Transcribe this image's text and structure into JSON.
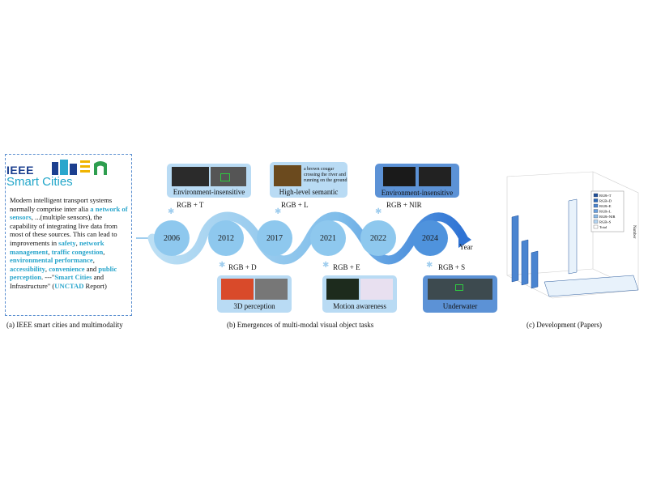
{
  "panel_a": {
    "logo_ieee": "IEEE",
    "logo_smart": "Smart Cities",
    "paragraph": [
      {
        "t": "Modern intelligent transport systems normally comprise inter alia "
      },
      {
        "t": "a network of sensors",
        "hl": true
      },
      {
        "t": ", ...(multiple sensors), the capability of integrating live data from most of these sources. This can lead to improvements in "
      },
      {
        "t": "safety",
        "hl": true
      },
      {
        "t": ", "
      },
      {
        "t": "network management",
        "hl": true
      },
      {
        "t": ", "
      },
      {
        "t": "traffic congestion",
        "hl": true
      },
      {
        "t": ", "
      },
      {
        "t": "environmental performance",
        "hl": true
      },
      {
        "t": ", "
      },
      {
        "t": "accessibility",
        "hl": true
      },
      {
        "t": ", "
      },
      {
        "t": "convenience",
        "hl": true
      },
      {
        "t": " and "
      },
      {
        "t": "public perception",
        "hl": true
      },
      {
        "t": ". ---\"",
        "br": true
      },
      {
        "t": "Smart Cities",
        "hl": true
      },
      {
        "t": " and Infrastructure\" ("
      },
      {
        "t": "UNCTAD",
        "hl": true
      },
      {
        "t": " Report)"
      }
    ],
    "caption": "(a) IEEE smart cities and multimodality"
  },
  "panel_b": {
    "years": [
      "2006",
      "2012",
      "2017",
      "2021",
      "2022",
      "2024"
    ],
    "axis_label": "Year",
    "top_events": [
      {
        "modality": "RGB + T",
        "task": "Environment-insensitive"
      },
      {
        "modality": "RGB + L",
        "task": "High-level semantic",
        "quote": [
          "a brown cougar",
          "crossing the river and",
          "running on the ground"
        ]
      },
      {
        "modality": "RGB + NIR",
        "task": "Environment-insensitive"
      }
    ],
    "bottom_events": [
      {
        "modality": "RGB + D",
        "task": "3D perception"
      },
      {
        "modality": "RGB + E",
        "task": "Motion awareness"
      },
      {
        "modality": "RGB + S",
        "task": "Underwater"
      }
    ],
    "caption": "(b) Emergences of multi-modal visual object tasks",
    "colors": {
      "wave_light": "#a9d3f0",
      "wave_dark": "#3a7fd8",
      "disc": "#7cc0ea",
      "frame_light": "#b9dbf4",
      "frame_dark": "#5c92d6"
    }
  },
  "panel_c": {
    "legend": [
      "RGB+T",
      "RGB+D",
      "RGB+E",
      "RGB+L",
      "RGB+NIR",
      "RGB+S",
      "Total"
    ],
    "z_label": "Number",
    "caption": "(c) Development (Papers)"
  }
}
